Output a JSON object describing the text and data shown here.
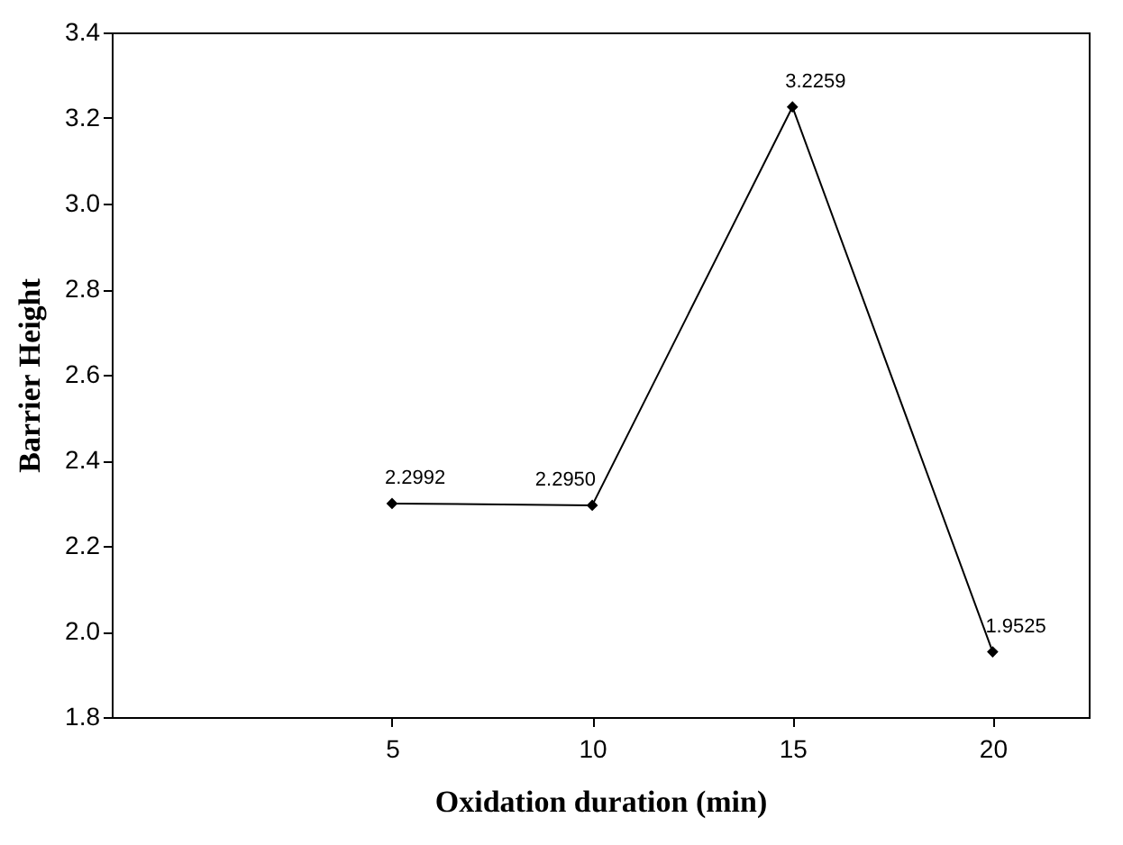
{
  "chart_data": {
    "type": "line",
    "xlabel": "Oxidation duration (min)",
    "ylabel": "Barrier Height",
    "x": [
      5,
      10,
      15,
      20
    ],
    "series": [
      {
        "color": "#000000",
        "values": [
          2.2992,
          2.295,
          3.2259,
          1.9525
        ],
        "value_labels": [
          "2.2992",
          "2.2950",
          "3.2259",
          "1.9525"
        ]
      }
    ],
    "xlim": [
      -2,
      22.4
    ],
    "xticks": [
      5,
      10,
      15,
      20
    ],
    "ylim": [
      1.8,
      3.4
    ],
    "yticks": [
      1.8,
      {
        "value": 2,
        "label": "2.0"
      },
      2.2,
      2.4,
      2.6,
      2.8,
      {
        "value": 3,
        "label": "3.0"
      },
      3.2,
      3.4
    ],
    "marker": "diamond",
    "line_style": "solid",
    "grid": false
  }
}
